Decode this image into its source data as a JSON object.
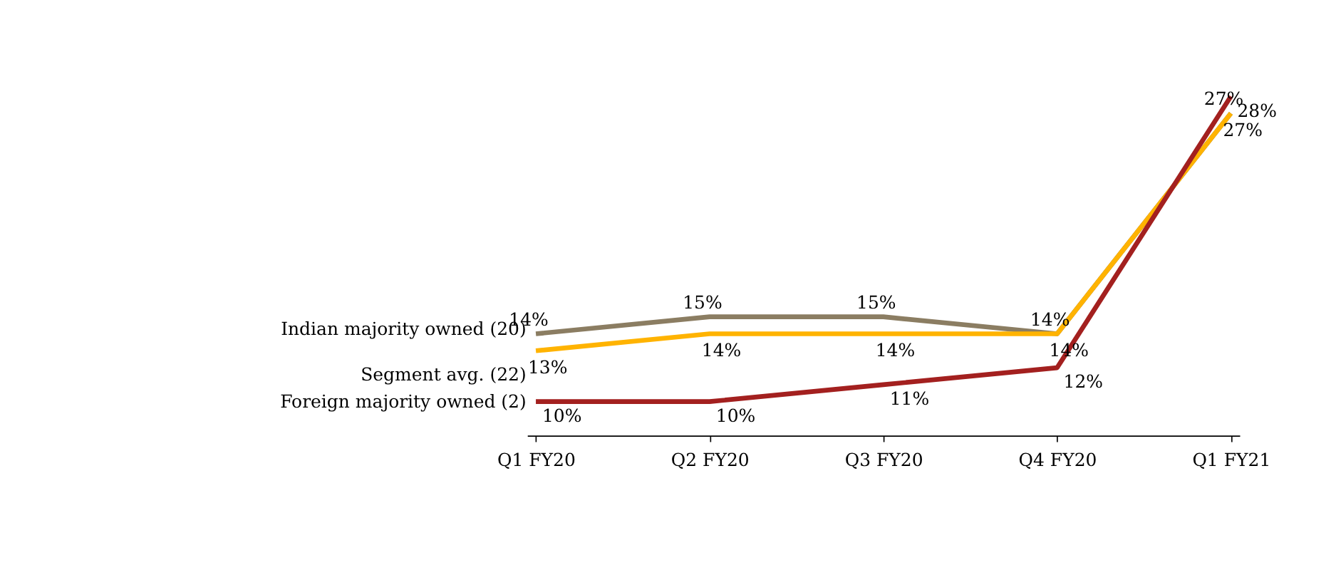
{
  "chart_data": {
    "type": "line",
    "categories": [
      "Q1 FY20",
      "Q2 FY20",
      "Q3 FY20",
      "Q4 FY20",
      "Q1 FY21"
    ],
    "series": [
      {
        "name": "Indian majority owned (20)",
        "color": "#8b7d62",
        "values": [
          14,
          15,
          15,
          14,
          27
        ],
        "value_labels": [
          "14%",
          "15%",
          "15%",
          "14%",
          "27%"
        ]
      },
      {
        "name": "Segment avg. (22)",
        "color": "#ffb300",
        "values": [
          13,
          14,
          14,
          14,
          27
        ],
        "value_labels": [
          "13%",
          "14%",
          "14%",
          "14%",
          "27%"
        ]
      },
      {
        "name": "Foreign majority owned (2)",
        "color": "#a3201f",
        "values": [
          10,
          10,
          11,
          12,
          28
        ],
        "value_labels": [
          "10%",
          "10%",
          "11%",
          "12%",
          "28%"
        ]
      }
    ],
    "grid": false,
    "marker": "none",
    "line_style": "solid"
  }
}
